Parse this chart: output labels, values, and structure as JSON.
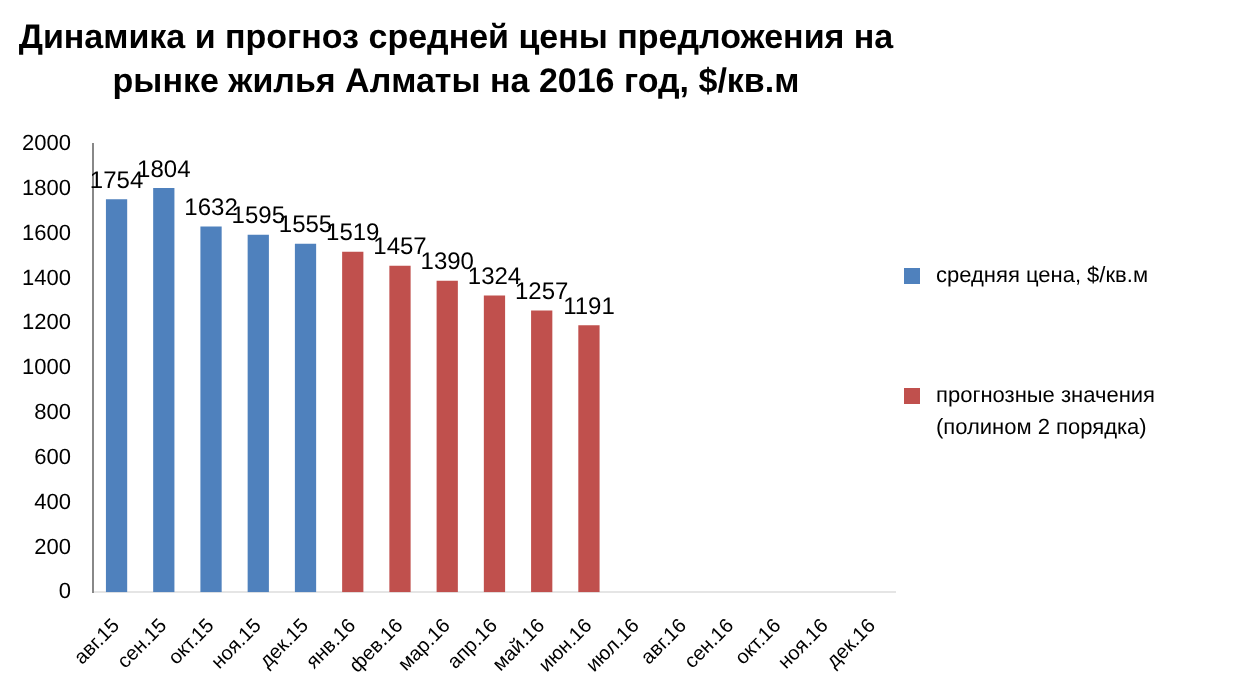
{
  "chart_data": {
    "type": "bar",
    "title": "Динамика и прогноз средней цены предложения на рынке жилья Алматы на 2016 год, $/кв.м",
    "categories": [
      "авг.15",
      "сен.15",
      "окт.15",
      "ноя.15",
      "дек.15",
      "янв.16",
      "фев.16",
      "мар.16",
      "апр.16",
      "май.16",
      "июн.16",
      "июл.16",
      "авг.16",
      "сен.16",
      "окт.16",
      "ноя.16",
      "дек.16"
    ],
    "series": [
      {
        "name": "средняя цена, $/кв.м",
        "color": "#4f81bd",
        "values": [
          1754,
          1804,
          1632,
          1595,
          1555,
          null,
          null,
          null,
          null,
          null,
          null,
          null,
          null,
          null,
          null,
          null,
          null
        ]
      },
      {
        "name": "прогнозные значения (полином 2 порядка)",
        "color": "#c0504d",
        "values": [
          null,
          null,
          null,
          null,
          null,
          1519,
          1457,
          1390,
          1324,
          1257,
          1191,
          null,
          null,
          null,
          null,
          null,
          null
        ]
      }
    ],
    "ylim": [
      0,
      2000
    ],
    "yticks": [
      0,
      200,
      400,
      600,
      800,
      1000,
      1200,
      1400,
      1600,
      1800,
      2000
    ],
    "grid": false,
    "legend": "right",
    "data_labels": true
  }
}
